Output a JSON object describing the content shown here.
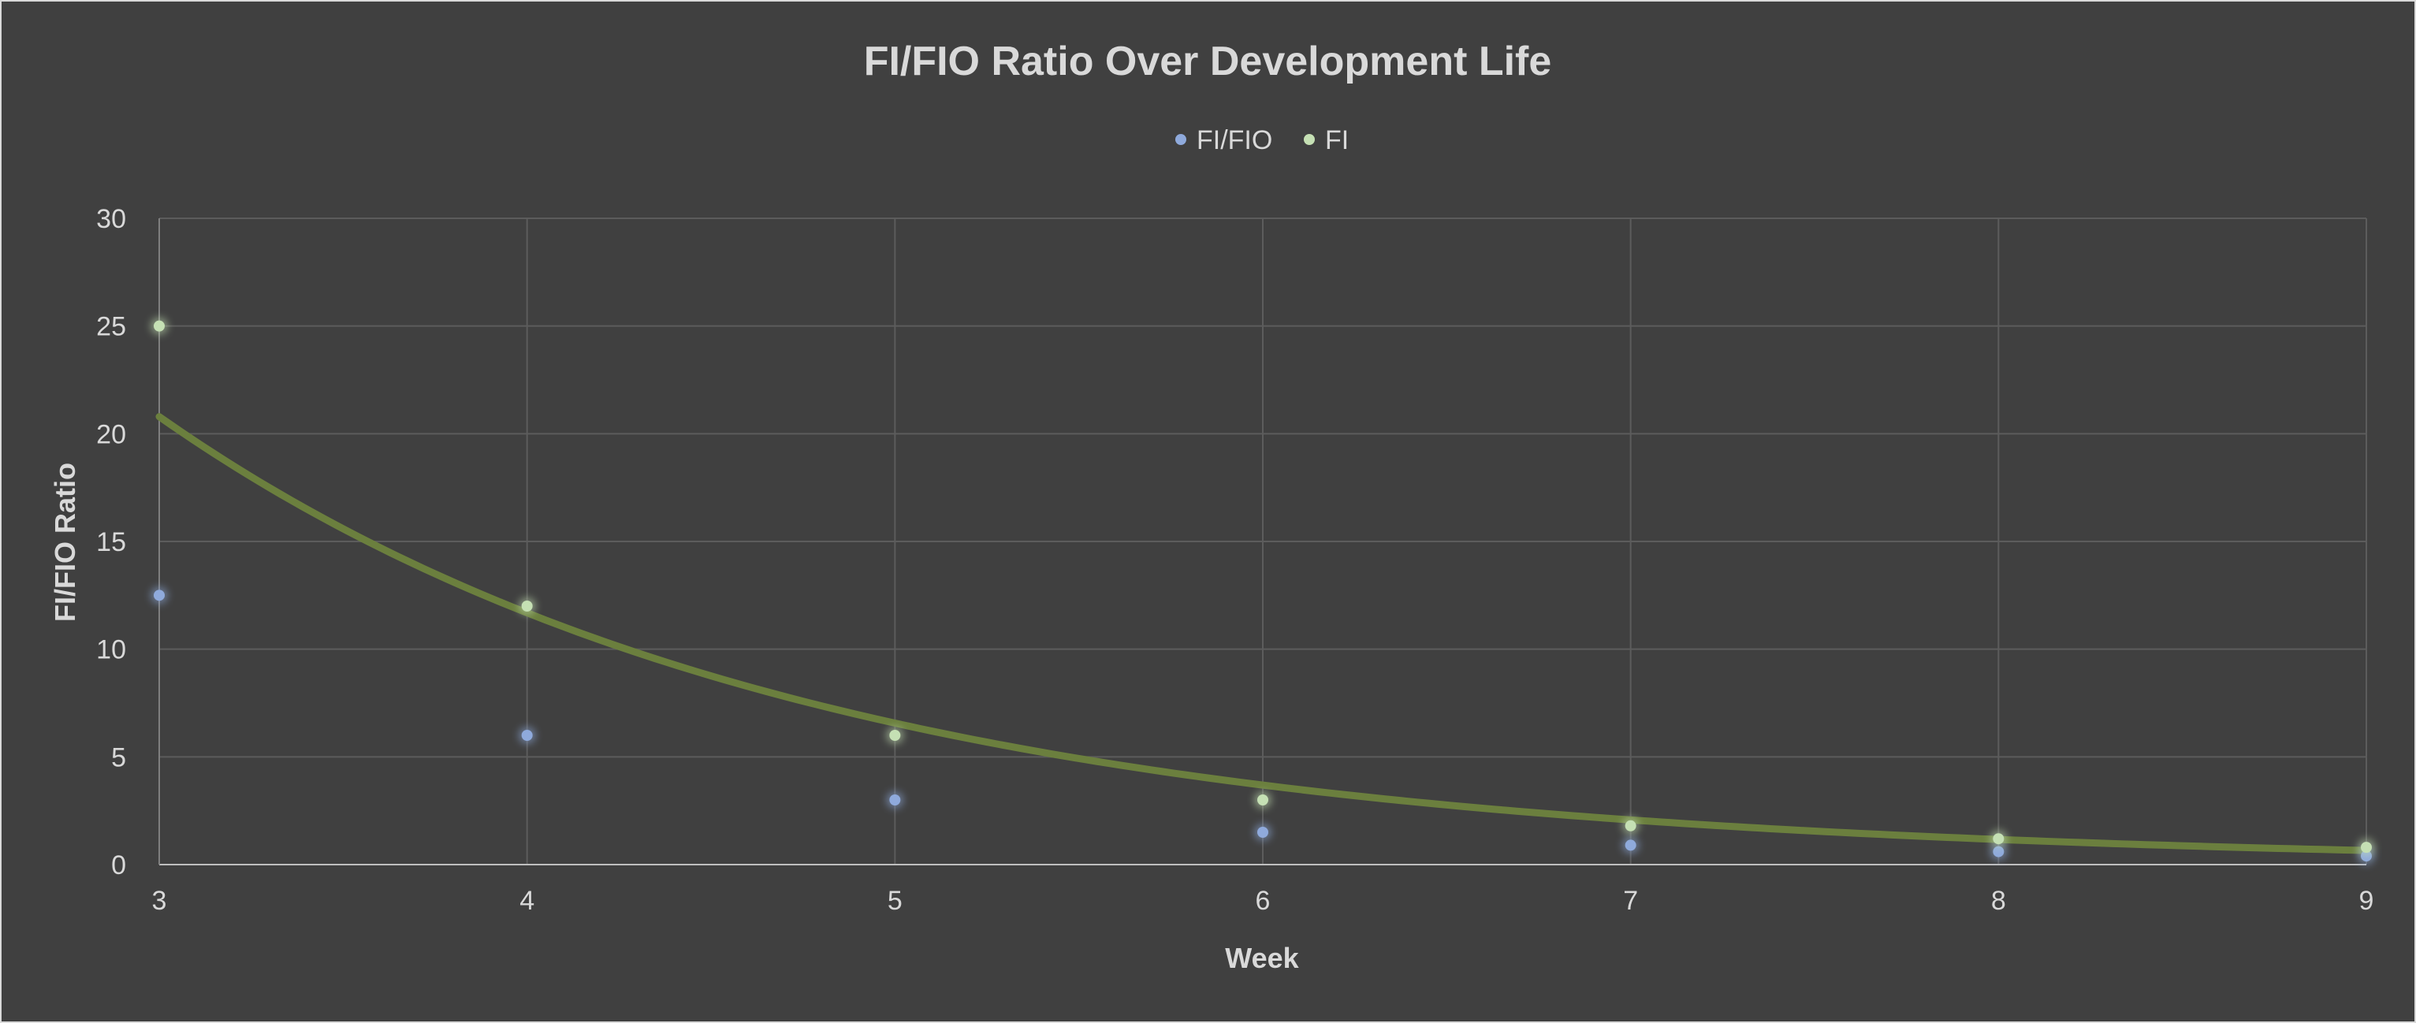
{
  "chart_data": {
    "type": "scatter",
    "title": "FI/FIO Ratio Over Development Life",
    "xlabel": "Week",
    "ylabel": "FI/FIO Ratio",
    "xlim": [
      3,
      9
    ],
    "ylim": [
      0,
      30
    ],
    "xticks": [
      "3",
      "4",
      "5",
      "6",
      "7",
      "8",
      "9"
    ],
    "yticks": [
      "0",
      "5",
      "10",
      "15",
      "20",
      "25",
      "30"
    ],
    "grid": true,
    "legend_position": "top",
    "series": [
      {
        "name": "FI/FIO",
        "color": "#8faadc",
        "x": [
          3,
          4,
          5,
          6,
          7,
          8,
          9
        ],
        "y": [
          12.5,
          6,
          3,
          1.5,
          0.9,
          0.6,
          0.4
        ]
      },
      {
        "name": "FI",
        "color": "#c5e0b4",
        "x": [
          3,
          4,
          5,
          6,
          7,
          8,
          9
        ],
        "y": [
          25,
          12,
          6,
          3,
          1.8,
          1.2,
          0.8
        ]
      }
    ],
    "trendline": {
      "series": "FI",
      "type": "exponential",
      "color": "#6b7f3e"
    }
  }
}
